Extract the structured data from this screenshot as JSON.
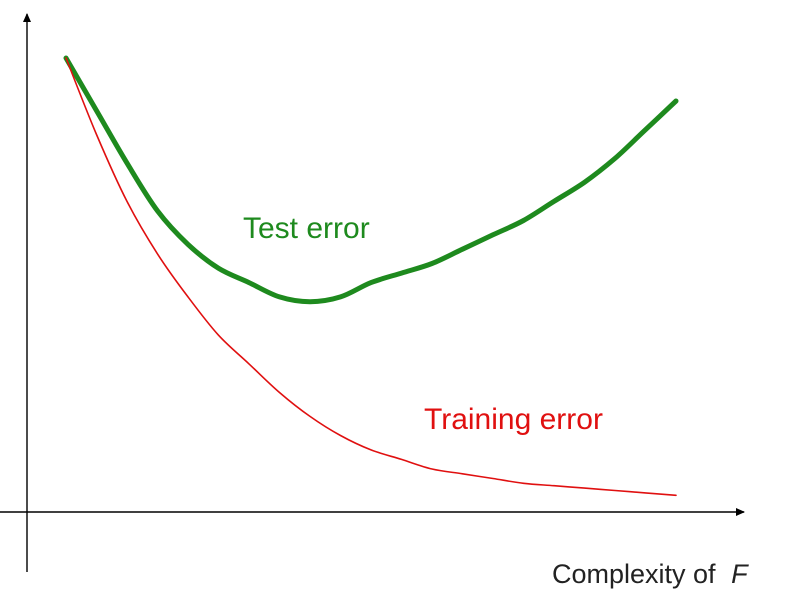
{
  "chart_data": {
    "type": "line",
    "title": "",
    "xlabel": {
      "text": "Complexity of",
      "variable": "F"
    },
    "ylabel": "",
    "grid": false,
    "legend": "none",
    "x": [
      0.0,
      0.05,
      0.1,
      0.15,
      0.2,
      0.25,
      0.3,
      0.35,
      0.4,
      0.45,
      0.5,
      0.55,
      0.6,
      0.65,
      0.7,
      0.75,
      0.8,
      0.85,
      0.9,
      0.95,
      1.0
    ],
    "series": [
      {
        "name": "Test error",
        "color": "#1e8a1e",
        "values": [
          0.95,
          0.84,
          0.73,
          0.63,
          0.56,
          0.51,
          0.48,
          0.45,
          0.44,
          0.45,
          0.48,
          0.5,
          0.52,
          0.55,
          0.58,
          0.61,
          0.65,
          0.69,
          0.74,
          0.8,
          0.86
        ]
      },
      {
        "name": "Training error",
        "color": "#e01010",
        "values": [
          0.95,
          0.79,
          0.65,
          0.54,
          0.45,
          0.37,
          0.31,
          0.25,
          0.2,
          0.16,
          0.13,
          0.11,
          0.09,
          0.08,
          0.07,
          0.06,
          0.055,
          0.05,
          0.045,
          0.04,
          0.035
        ]
      }
    ]
  }
}
